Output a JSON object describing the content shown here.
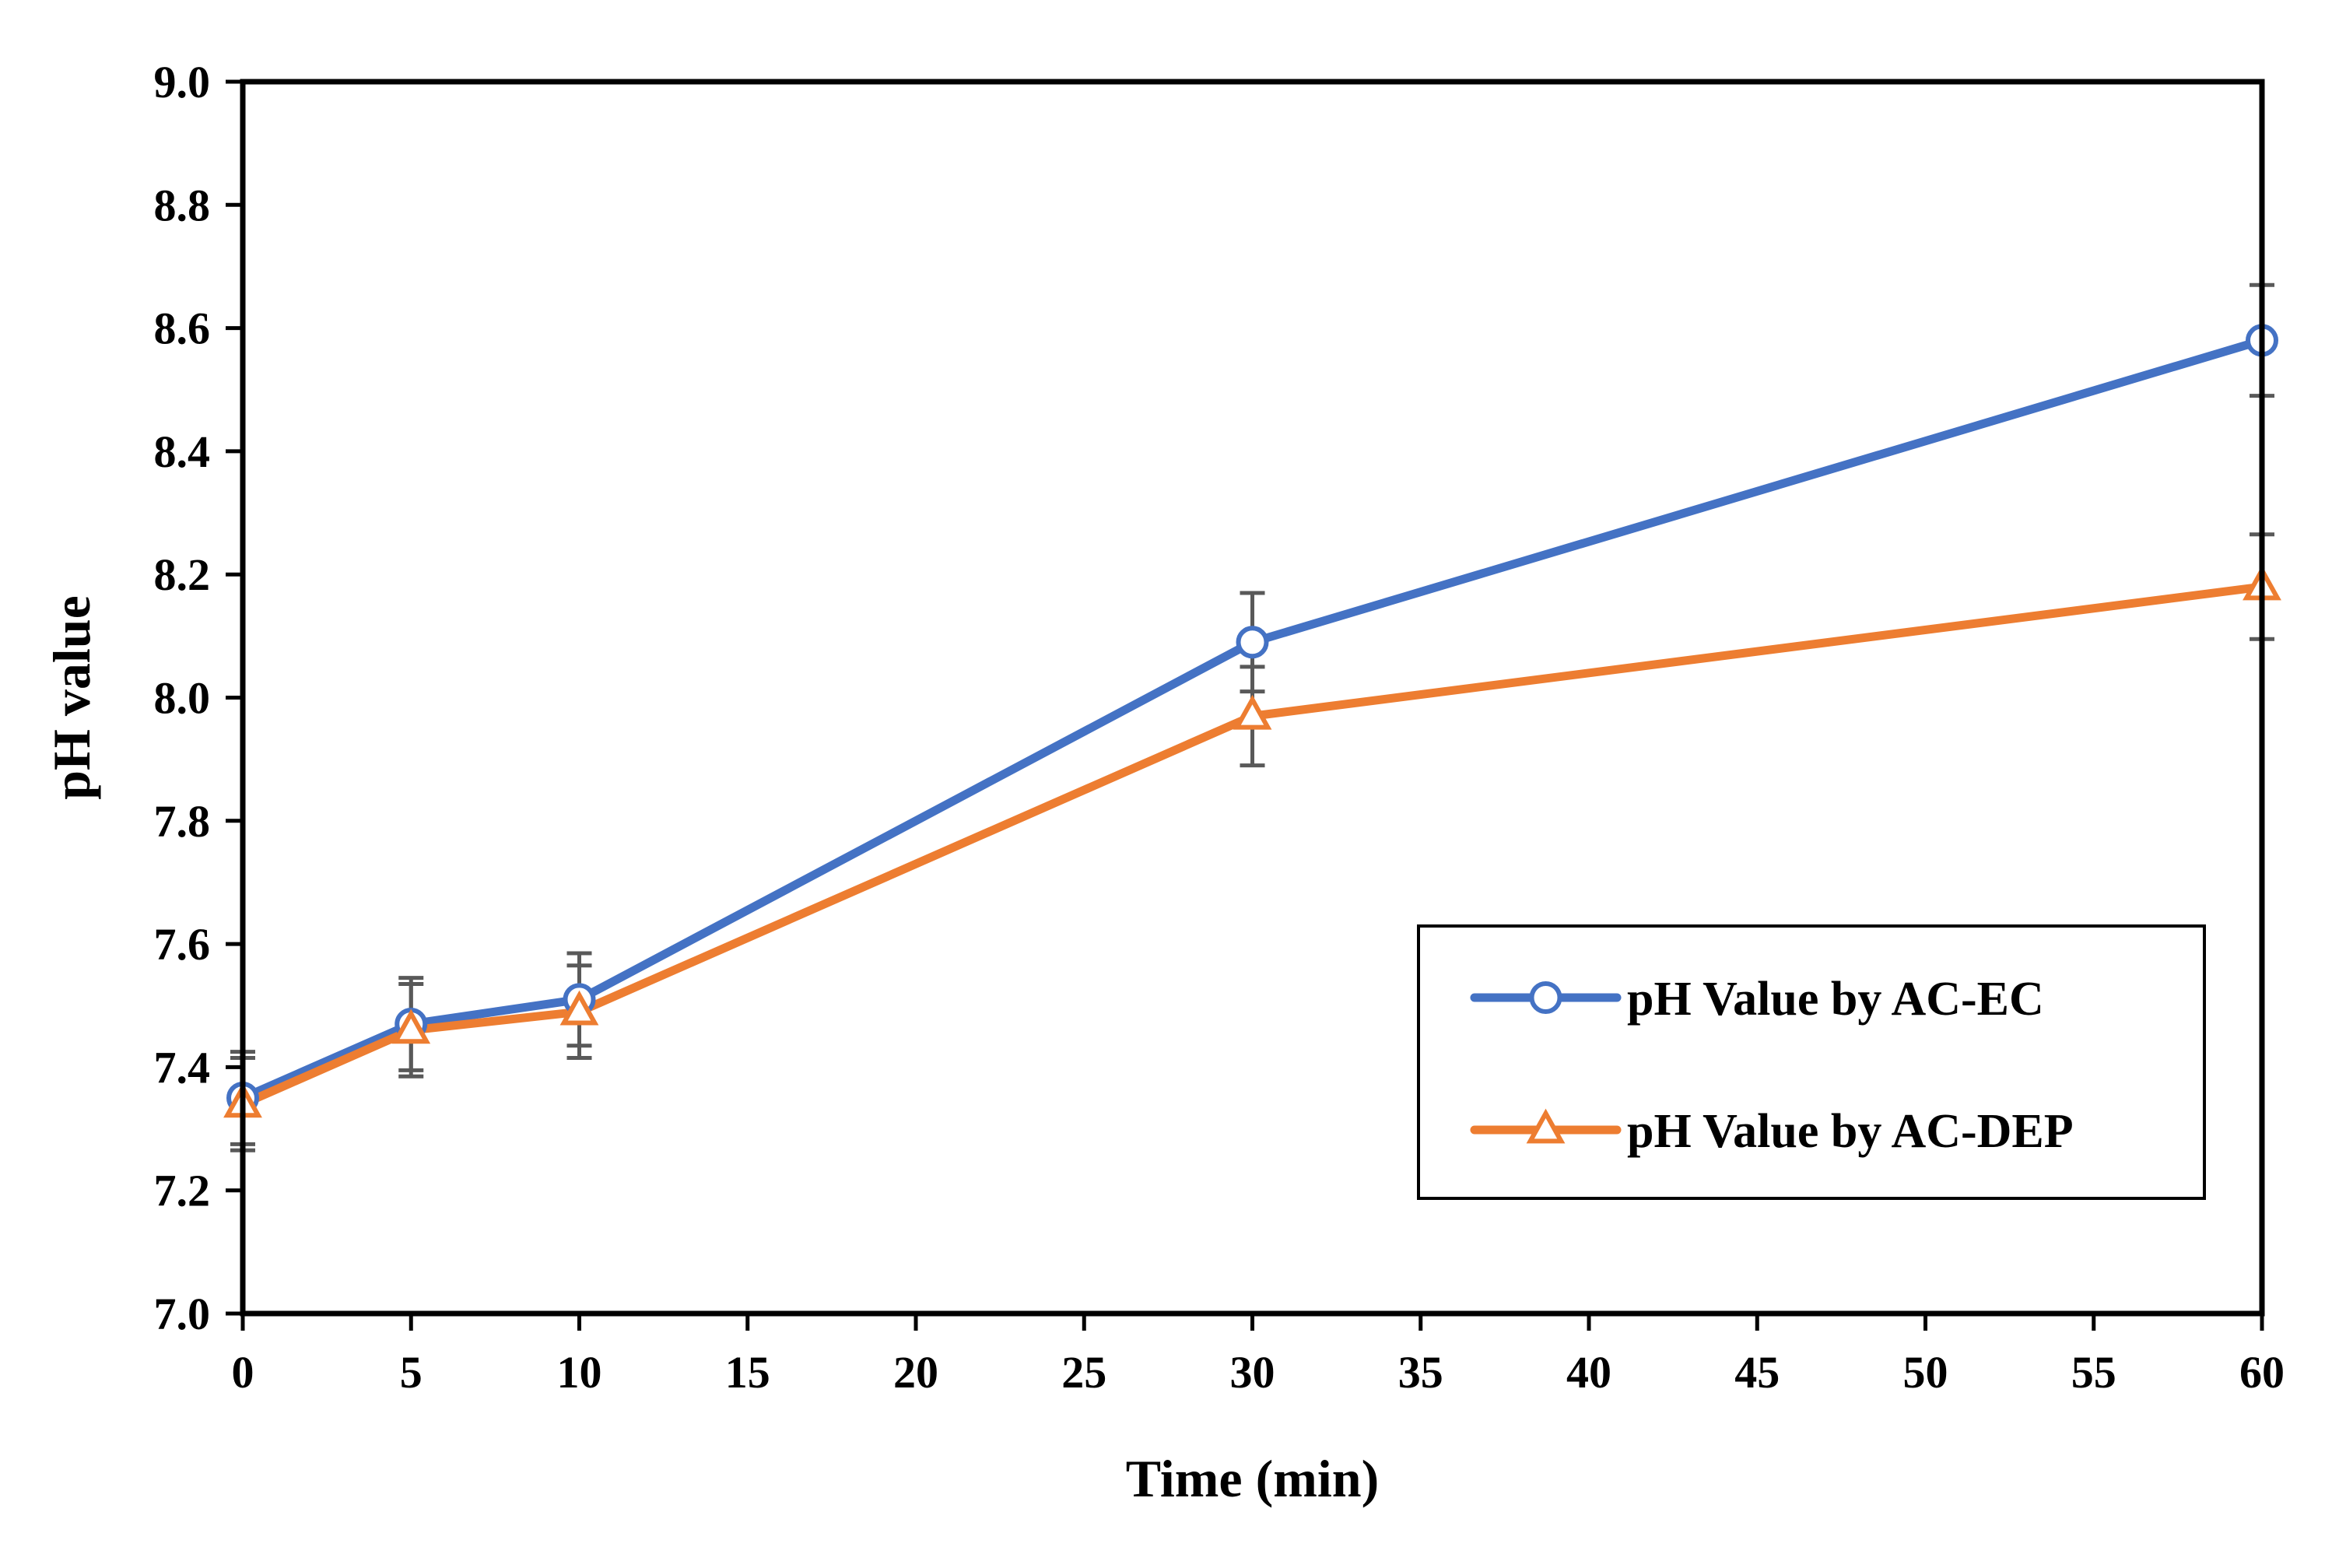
{
  "chart_data": {
    "type": "line",
    "title": "",
    "xlabel": "Time (min)",
    "ylabel": "pH value",
    "xlim": [
      0,
      60
    ],
    "ylim": [
      7.0,
      9.0
    ],
    "x_ticks": [
      0,
      5,
      10,
      15,
      20,
      25,
      30,
      35,
      40,
      45,
      50,
      55,
      60
    ],
    "y_ticks": [
      7.0,
      7.2,
      7.4,
      7.6,
      7.8,
      8.0,
      8.2,
      8.4,
      8.6,
      8.8,
      9.0
    ],
    "x_tick_labels": [
      "0",
      "5",
      "10",
      "15",
      "20",
      "25",
      "30",
      "35",
      "40",
      "45",
      "50",
      "55",
      "60"
    ],
    "y_tick_labels": [
      "7.0",
      "7.2",
      "7.4",
      "7.6",
      "7.8",
      "8.0",
      "8.2",
      "8.4",
      "8.6",
      "8.8",
      "9.0"
    ],
    "grid": false,
    "legend_position": "lower-right",
    "series": [
      {
        "name": "pH Value by AC-EC",
        "color": "#4472C4",
        "marker": "circle",
        "x": [
          0,
          5,
          10,
          30,
          60
        ],
        "values": [
          7.35,
          7.47,
          7.51,
          8.09,
          8.58
        ],
        "error": [
          0.075,
          0.075,
          0.075,
          0.08,
          0.09
        ]
      },
      {
        "name": "pH Value by AC-DEP",
        "color": "#ED7D31",
        "marker": "triangle",
        "x": [
          0,
          5,
          10,
          30,
          60
        ],
        "values": [
          7.34,
          7.46,
          7.49,
          7.97,
          8.18
        ],
        "error": [
          0.075,
          0.075,
          0.075,
          0.08,
          0.085
        ]
      }
    ],
    "error_bar_color": "#595959"
  }
}
